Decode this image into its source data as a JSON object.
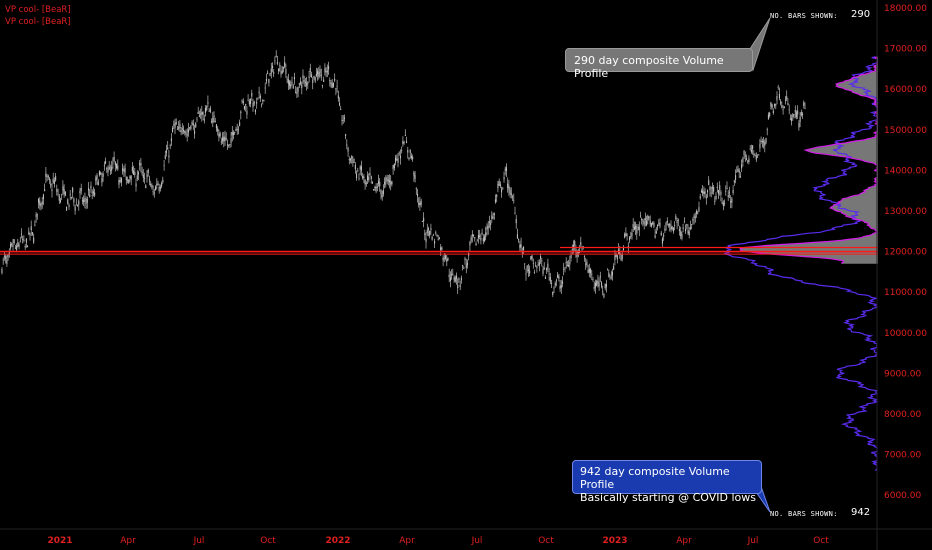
{
  "indicators": [
    "VP cool- [BeaR]",
    "VP cool- [BeaR]"
  ],
  "bars_shown": [
    {
      "label": "NO. BARS SHOWN:",
      "value": "290"
    },
    {
      "label": "NO. BARS SHOWN:",
      "value": "942"
    }
  ],
  "callouts": {
    "top": "290 day composite Volume Profile",
    "bottom_line1": "942 day composite Volume Profile",
    "bottom_line2": "Basically starting @ COVID lows"
  },
  "colors": {
    "background": "#000000",
    "candles": "#bdbdbd",
    "axis_text": "#e02020",
    "level_line": "#ff1a1a",
    "profile_290": "#d21ee6",
    "profile_942": "#5a2cf0",
    "profile_fill": "#8c8c8c"
  },
  "chart_data": {
    "type": "line",
    "title": "",
    "xlabel": "",
    "ylabel": "",
    "ylim": [
      5700,
      18000
    ],
    "y_ticks": [
      "18000.00",
      "17000.00",
      "16000.00",
      "15000.00",
      "14000.00",
      "13000.00",
      "12000.00",
      "11000.00",
      "10000.00",
      "9000.00",
      "8000.00",
      "7000.00",
      "6000.00"
    ],
    "x_ticks": [
      "2021",
      "Apr",
      "Jul",
      "Oct",
      "2022",
      "Apr",
      "Jul",
      "Oct",
      "2023",
      "Apr",
      "Jul",
      "Oct"
    ],
    "x": [
      "2020-12",
      "2021-01",
      "2021-02",
      "2021-03",
      "2021-04",
      "2021-05",
      "2021-06",
      "2021-07",
      "2021-08",
      "2021-09",
      "2021-10",
      "2021-11",
      "2021-12",
      "2022-01",
      "2022-02",
      "2022-03",
      "2022-04",
      "2022-05",
      "2022-06",
      "2022-07",
      "2022-08",
      "2022-09",
      "2022-10",
      "2022-11",
      "2022-12",
      "2023-01",
      "2023-02",
      "2023-03",
      "2023-04",
      "2023-05",
      "2023-06",
      "2023-07",
      "2023-08"
    ],
    "series": [
      {
        "values": [
          11600,
          12400,
          13700,
          13100,
          13900,
          14000,
          13600,
          14900,
          15400,
          14800,
          15700,
          16500,
          16100,
          16500,
          14200,
          13400,
          14600,
          12600,
          11400,
          12200,
          13700,
          11700,
          11300,
          12000,
          11100,
          12500,
          12700,
          12500,
          13300,
          13500,
          14500,
          15700,
          15300
        ]
      }
    ],
    "horizontal_levels": [
      12000,
      12100
    ],
    "volume_profiles": [
      {
        "bars_shown": 290,
        "range": [
          11700,
          16800
        ]
      },
      {
        "bars_shown": 942,
        "range": [
          6600,
          16800
        ]
      }
    ]
  }
}
